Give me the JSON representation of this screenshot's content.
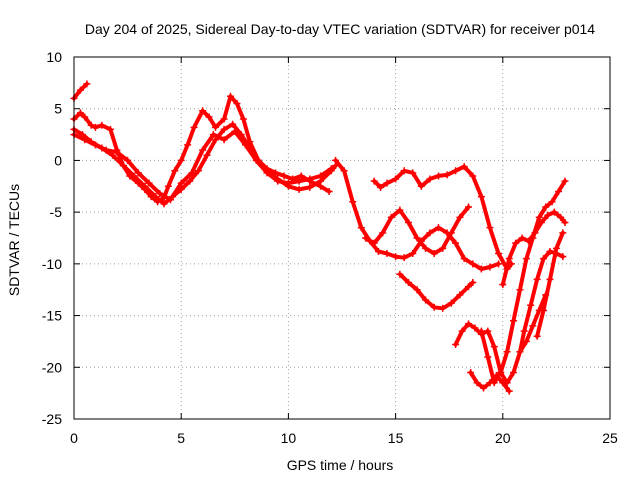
{
  "chart_data": {
    "type": "scatter",
    "title": "Day 204 of 2025, Sidereal Day-to-day VTEC variation (SDTVAR) for receiver p014",
    "xlabel": "GPS time / hours",
    "ylabel": "SDTVAR / TECUs",
    "xlim": [
      0,
      25
    ],
    "ylim": [
      -25,
      10
    ],
    "xticks": [
      "0",
      "5",
      "10",
      "15",
      "20",
      "25"
    ],
    "yticks": [
      "10",
      "5",
      "0",
      "-5",
      "-10",
      "-15",
      "-20",
      "-25"
    ],
    "xtick_values": [
      0,
      5,
      10,
      15,
      20,
      25
    ],
    "ytick_values": [
      10,
      5,
      0,
      -5,
      -10,
      -15,
      -20,
      -25
    ],
    "grid": true,
    "marker": "plus",
    "color": "#ff0000",
    "series": [
      {
        "x": [
          0.0,
          0.3,
          0.6
        ],
        "y": [
          6.0,
          6.8,
          7.4
        ]
      },
      {
        "x": [
          0.0,
          0.3,
          0.5,
          0.8,
          1.0,
          1.3,
          1.7,
          2.0,
          2.3,
          2.6,
          3.0,
          3.3,
          3.6,
          3.9,
          4.2,
          4.4,
          4.7,
          5.0,
          5.3,
          5.6,
          6.0,
          6.3,
          6.6,
          7.0,
          7.3,
          7.6,
          7.9,
          8.2,
          8.6,
          9.0,
          9.4,
          9.8,
          10.2,
          10.6,
          11.0,
          11.5,
          11.9
        ],
        "y": [
          4.0,
          4.6,
          4.2,
          3.4,
          3.2,
          3.4,
          3.0,
          1.0,
          -0.5,
          -1.5,
          -2.2,
          -2.8,
          -3.5,
          -4.0,
          -3.6,
          -2.5,
          -1.0,
          0.0,
          1.5,
          3.2,
          4.8,
          4.2,
          3.2,
          4.0,
          6.2,
          5.5,
          4.0,
          1.8,
          0.0,
          -0.8,
          -1.2,
          -1.5,
          -1.8,
          -1.5,
          -2.0,
          -2.5,
          -3.0
        ]
      },
      {
        "x": [
          0.0,
          0.4,
          0.8,
          1.3,
          1.8,
          2.3,
          2.8,
          3.3,
          3.8,
          4.2,
          4.6,
          5.0,
          5.4,
          5.8,
          6.2,
          6.6,
          7.0,
          7.4,
          7.8,
          8.2,
          8.6,
          9.0,
          9.5,
          10.0,
          10.5,
          11.0,
          11.5,
          12.0,
          12.2
        ],
        "y": [
          3.0,
          2.5,
          1.8,
          1.2,
          0.5,
          -0.5,
          -1.5,
          -2.5,
          -3.5,
          -4.2,
          -3.5,
          -2.8,
          -2.0,
          -1.0,
          0.5,
          2.0,
          3.0,
          3.5,
          2.5,
          1.2,
          0.0,
          -1.0,
          -1.8,
          -2.5,
          -2.8,
          -2.6,
          -2.0,
          -1.0,
          -0.5
        ]
      },
      {
        "x": [
          0.0,
          0.5,
          1.0,
          1.5,
          2.0,
          2.5,
          3.0,
          3.5,
          4.0,
          4.5,
          5.0,
          5.5,
          6.0,
          6.5,
          7.0,
          7.5,
          8.0,
          8.5,
          9.0,
          9.5,
          10.0,
          10.5,
          11.0,
          11.5,
          12.0
        ],
        "y": [
          2.5,
          2.0,
          1.5,
          1.0,
          0.8,
          0.0,
          -1.2,
          -2.2,
          -3.2,
          -3.8,
          -2.2,
          -1.2,
          1.0,
          2.5,
          2.0,
          2.8,
          1.5,
          0.0,
          -1.2,
          -2.0,
          -2.2,
          -2.0,
          -1.8,
          -1.5,
          -0.8
        ]
      },
      {
        "x": [
          12.2,
          12.6,
          13.0,
          13.4,
          13.8,
          14.2,
          14.6,
          15.0,
          15.4,
          15.8,
          16.2,
          16.6,
          17.0,
          17.4,
          17.8,
          18.2,
          18.6,
          19.0,
          19.4,
          19.8
        ],
        "y": [
          0.0,
          -1.0,
          -4.0,
          -6.5,
          -7.8,
          -8.8,
          -9.0,
          -9.3,
          -9.4,
          -9.0,
          -7.8,
          -7.0,
          -6.5,
          -7.0,
          -8.0,
          -9.5,
          -10.0,
          -10.5,
          -10.3,
          -10.0
        ]
      },
      {
        "x": [
          13.6,
          14.0,
          14.4,
          14.8,
          15.2,
          15.6,
          16.0,
          16.4,
          16.8,
          17.2,
          17.6,
          18.0,
          18.4
        ],
        "y": [
          -7.5,
          -8.0,
          -7.0,
          -5.5,
          -4.8,
          -6.0,
          -7.5,
          -8.5,
          -9.0,
          -8.5,
          -7.0,
          -5.5,
          -4.5
        ]
      },
      {
        "x": [
          14.0,
          14.3,
          14.6,
          15.0,
          15.4,
          15.8,
          16.2,
          16.6,
          17.0,
          17.4,
          17.8,
          18.2,
          18.6,
          19.0,
          19.4,
          19.8,
          20.2,
          20.4
        ],
        "y": [
          -2.0,
          -2.6,
          -2.2,
          -1.8,
          -1.0,
          -1.2,
          -2.5,
          -1.8,
          -1.5,
          -1.4,
          -1.0,
          -0.6,
          -1.5,
          -3.5,
          -6.5,
          -9.0,
          -10.5,
          -10.0
        ]
      },
      {
        "x": [
          15.2,
          15.6,
          16.0,
          16.4,
          16.8,
          17.2,
          17.6,
          18.0,
          18.4,
          18.6
        ],
        "y": [
          -11.0,
          -11.8,
          -12.5,
          -13.5,
          -14.2,
          -14.3,
          -13.8,
          -13.0,
          -12.2,
          -11.8
        ]
      },
      {
        "x": [
          17.8,
          18.1,
          18.4,
          18.7,
          19.0,
          19.3,
          19.6,
          19.9,
          20.2,
          20.5,
          20.8,
          21.1,
          21.4,
          21.7,
          22.0
        ],
        "y": [
          -17.8,
          -16.5,
          -15.8,
          -16.2,
          -16.8,
          -16.5,
          -18.0,
          -20.5,
          -21.5,
          -20.5,
          -18.5,
          -17.5,
          -16.0,
          -14.5,
          -13.0
        ]
      },
      {
        "x": [
          18.5,
          18.8,
          19.1,
          19.4,
          19.7,
          20.0,
          20.3
        ],
        "y": [
          -20.5,
          -21.5,
          -22.0,
          -21.5,
          -20.8,
          -21.5,
          -22.3
        ]
      },
      {
        "x": [
          19.0,
          19.3,
          19.6,
          19.9,
          20.2,
          20.5,
          20.8,
          21.1,
          21.4,
          21.7,
          22.0,
          22.3,
          22.6,
          22.9
        ],
        "y": [
          -16.5,
          -19.0,
          -21.5,
          -20.5,
          -18.5,
          -15.5,
          -12.5,
          -9.5,
          -7.5,
          -5.5,
          -4.5,
          -4.0,
          -3.0,
          -2.0
        ]
      },
      {
        "x": [
          20.0,
          20.3,
          20.6,
          20.9,
          21.2,
          21.5,
          21.8,
          22.1,
          22.4,
          22.7,
          22.9
        ],
        "y": [
          -12.0,
          -9.5,
          -8.0,
          -7.5,
          -7.8,
          -7.0,
          -6.0,
          -5.3,
          -5.0,
          -5.5,
          -6.0
        ]
      },
      {
        "x": [
          20.8,
          21.0,
          21.3,
          21.6,
          21.9,
          22.2,
          22.5,
          22.8
        ],
        "y": [
          -18.5,
          -16.5,
          -14.0,
          -11.5,
          -9.5,
          -8.8,
          -9.0,
          -9.3
        ]
      },
      {
        "x": [
          21.6,
          21.9,
          22.2,
          22.5,
          22.8
        ],
        "y": [
          -17.0,
          -14.5,
          -11.5,
          -8.5,
          -7.0
        ]
      }
    ]
  }
}
